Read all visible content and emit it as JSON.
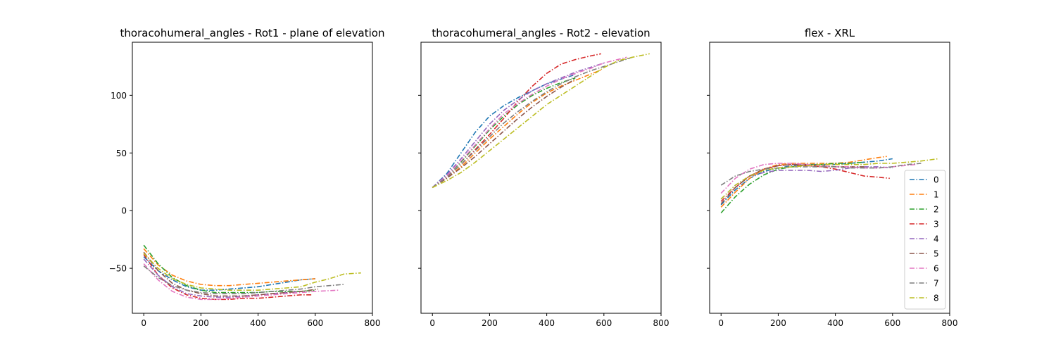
{
  "chart_data": [
    {
      "type": "line",
      "title": "thoracohumeral_angles - Rot1 - plane of elevation",
      "xlabel": "",
      "ylabel": "",
      "xlim": [
        -40,
        800
      ],
      "ylim": [
        -89,
        146
      ],
      "xticks": [
        0,
        200,
        400,
        600,
        800
      ],
      "yticks": [
        -50,
        0,
        50,
        100
      ],
      "yticklabels": [
        "−50",
        "0",
        "50",
        "100"
      ],
      "grid": false,
      "series": [
        {
          "name": "0",
          "x": [
            0,
            50,
            100,
            150,
            200,
            250,
            300,
            350,
            400,
            450,
            500,
            550,
            600
          ],
          "y": [
            -40,
            -52,
            -60,
            -66,
            -69,
            -69,
            -68,
            -67,
            -66,
            -64,
            -62,
            -60,
            -59
          ]
        },
        {
          "name": "1",
          "x": [
            0,
            50,
            100,
            150,
            200,
            250,
            300,
            350,
            400,
            450,
            500,
            550,
            600
          ],
          "y": [
            -33,
            -47,
            -56,
            -61,
            -64,
            -65,
            -65,
            -64,
            -63,
            -62,
            -61,
            -60,
            -59
          ]
        },
        {
          "name": "2",
          "x": [
            0,
            50,
            100,
            150,
            200,
            250,
            300,
            350,
            400,
            450,
            500,
            550,
            600
          ],
          "y": [
            -30,
            -46,
            -58,
            -65,
            -69,
            -71,
            -71,
            -71,
            -71,
            -70,
            -70,
            -70,
            -69
          ]
        },
        {
          "name": "3",
          "x": [
            0,
            50,
            100,
            150,
            200,
            250,
            300,
            350,
            400,
            450,
            500,
            550,
            590
          ],
          "y": [
            -38,
            -56,
            -67,
            -73,
            -76,
            -77,
            -77,
            -76,
            -76,
            -75,
            -74,
            -73,
            -73
          ]
        },
        {
          "name": "4",
          "x": [
            0,
            50,
            100,
            150,
            200,
            250,
            300,
            350,
            400,
            450,
            500,
            550
          ],
          "y": [
            -42,
            -56,
            -66,
            -72,
            -74,
            -75,
            -75,
            -74,
            -73,
            -72,
            -71,
            -70
          ]
        },
        {
          "name": "5",
          "x": [
            0,
            50,
            100,
            150,
            200,
            250,
            300,
            350,
            400,
            450,
            500,
            550,
            610
          ],
          "y": [
            -36,
            -52,
            -63,
            -69,
            -72,
            -74,
            -74,
            -74,
            -73,
            -72,
            -71,
            -70,
            -68
          ]
        },
        {
          "name": "6",
          "x": [
            0,
            50,
            100,
            150,
            200,
            250,
            300,
            350,
            400,
            450,
            500,
            550,
            600,
            680
          ],
          "y": [
            -46,
            -60,
            -70,
            -75,
            -77,
            -77,
            -76,
            -75,
            -74,
            -73,
            -72,
            -71,
            -70,
            -69
          ]
        },
        {
          "name": "7",
          "x": [
            0,
            50,
            100,
            150,
            200,
            250,
            300,
            350,
            400,
            450,
            500,
            550,
            600,
            650,
            700
          ],
          "y": [
            -48,
            -58,
            -65,
            -69,
            -71,
            -72,
            -72,
            -72,
            -71,
            -70,
            -69,
            -68,
            -66,
            -65,
            -64
          ]
        },
        {
          "name": "8",
          "x": [
            0,
            50,
            100,
            150,
            200,
            250,
            300,
            350,
            400,
            450,
            500,
            550,
            600,
            650,
            700,
            760
          ],
          "y": [
            -37,
            -50,
            -59,
            -64,
            -67,
            -68,
            -69,
            -69,
            -69,
            -68,
            -67,
            -66,
            -62,
            -59,
            -55,
            -54
          ]
        }
      ]
    },
    {
      "type": "line",
      "title": "thoracohumeral_angles - Rot2 - elevation",
      "xlabel": "",
      "ylabel": "",
      "xlim": [
        -40,
        800
      ],
      "ylim": [
        -89,
        146
      ],
      "xticks": [
        0,
        200,
        400,
        600,
        800
      ],
      "yticks": [
        -50,
        0,
        50,
        100
      ],
      "grid": false,
      "series": [
        {
          "name": "0",
          "x": [
            0,
            50,
            100,
            150,
            200,
            250,
            300,
            350,
            400,
            450,
            500
          ],
          "y": [
            20,
            32,
            50,
            68,
            82,
            91,
            98,
            104,
            110,
            114,
            118
          ]
        },
        {
          "name": "1",
          "x": [
            0,
            50,
            100,
            150,
            200,
            250,
            300,
            350,
            400,
            450,
            500,
            550,
            590
          ],
          "y": [
            20,
            28,
            38,
            50,
            62,
            73,
            84,
            94,
            102,
            108,
            113,
            118,
            122
          ]
        },
        {
          "name": "2",
          "x": [
            0,
            50,
            100,
            150,
            200,
            250,
            300,
            350,
            400,
            450,
            500
          ],
          "y": [
            20,
            30,
            42,
            56,
            70,
            82,
            92,
            100,
            106,
            111,
            115
          ]
        },
        {
          "name": "3",
          "x": [
            0,
            50,
            100,
            150,
            200,
            250,
            300,
            350,
            400,
            450,
            500,
            550,
            590
          ],
          "y": [
            20,
            29,
            40,
            53,
            66,
            80,
            95,
            108,
            119,
            127,
            131,
            134,
            136
          ]
        },
        {
          "name": "4",
          "x": [
            0,
            50,
            100,
            150,
            200,
            250,
            300,
            350,
            400,
            450,
            500,
            550,
            600
          ],
          "y": [
            20,
            31,
            45,
            60,
            75,
            87,
            96,
            104,
            110,
            115,
            120,
            124,
            128
          ]
        },
        {
          "name": "5",
          "x": [
            0,
            50,
            100,
            150,
            200,
            250,
            300,
            350,
            400,
            450,
            500
          ],
          "y": [
            20,
            28,
            37,
            47,
            58,
            69,
            80,
            90,
            99,
            107,
            114
          ]
        },
        {
          "name": "6",
          "x": [
            0,
            50,
            100,
            150,
            200,
            250,
            300,
            350,
            400,
            450,
            500,
            550,
            600,
            680
          ],
          "y": [
            20,
            30,
            43,
            57,
            71,
            84,
            93,
            101,
            108,
            114,
            119,
            123,
            128,
            133
          ]
        },
        {
          "name": "7",
          "x": [
            0,
            50,
            100,
            150,
            200,
            250,
            300,
            350,
            400,
            450,
            500,
            550,
            600,
            650,
            700
          ],
          "y": [
            20,
            29,
            40,
            52,
            64,
            76,
            86,
            95,
            103,
            110,
            116,
            121,
            125,
            129,
            133
          ]
        },
        {
          "name": "8",
          "x": [
            0,
            50,
            100,
            150,
            200,
            250,
            300,
            350,
            400,
            450,
            500,
            550,
            600,
            650,
            700,
            760
          ],
          "y": [
            20,
            26,
            33,
            42,
            52,
            62,
            72,
            82,
            92,
            100,
            108,
            116,
            124,
            130,
            133,
            136
          ]
        }
      ]
    },
    {
      "type": "line",
      "title": "flex - XRL",
      "xlabel": "",
      "ylabel": "",
      "xlim": [
        -40,
        800
      ],
      "ylim": [
        -89,
        146
      ],
      "xticks": [
        0,
        200,
        400,
        600,
        800
      ],
      "yticks": [
        -50,
        0,
        50,
        100
      ],
      "grid": false,
      "legend": "lower-right",
      "series": [
        {
          "name": "0",
          "x": [
            0,
            50,
            100,
            150,
            200,
            250,
            300,
            350,
            400,
            450,
            500,
            550,
            600
          ],
          "y": [
            5,
            18,
            28,
            34,
            37,
            39,
            40,
            40,
            40,
            41,
            42,
            43,
            45
          ]
        },
        {
          "name": "1",
          "x": [
            0,
            50,
            100,
            150,
            200,
            250,
            300,
            350,
            400,
            450,
            500,
            550,
            580
          ],
          "y": [
            3,
            16,
            28,
            36,
            40,
            41,
            41,
            41,
            41,
            42,
            44,
            46,
            47
          ]
        },
        {
          "name": "2",
          "x": [
            0,
            50,
            100,
            150,
            200,
            250,
            300,
            350,
            400,
            450,
            500
          ],
          "y": [
            -2,
            12,
            23,
            31,
            36,
            38,
            40,
            40,
            41,
            41,
            42
          ]
        },
        {
          "name": "3",
          "x": [
            0,
            50,
            100,
            150,
            200,
            250,
            300,
            350,
            400,
            450,
            500,
            550,
            590
          ],
          "y": [
            8,
            20,
            30,
            36,
            39,
            40,
            39,
            38,
            36,
            33,
            30,
            29,
            28
          ]
        },
        {
          "name": "4",
          "x": [
            0,
            50,
            100,
            150,
            200,
            250,
            300,
            350,
            400,
            450,
            500,
            550,
            600
          ],
          "y": [
            10,
            22,
            30,
            33,
            35,
            35,
            35,
            34,
            35,
            37,
            38,
            38,
            37
          ]
        },
        {
          "name": "5",
          "x": [
            0,
            50,
            100,
            150,
            200,
            250,
            300,
            350,
            400,
            450,
            500
          ],
          "y": [
            6,
            20,
            30,
            36,
            39,
            40,
            40,
            39,
            38,
            38,
            38
          ]
        },
        {
          "name": "6",
          "x": [
            0,
            50,
            100,
            150,
            200,
            250,
            300,
            350,
            400,
            450,
            500,
            550,
            600,
            680
          ],
          "y": [
            15,
            28,
            36,
            40,
            41,
            41,
            40,
            39,
            38,
            38,
            37,
            37,
            38,
            40
          ]
        },
        {
          "name": "7",
          "x": [
            0,
            50,
            100,
            150,
            200,
            250,
            300,
            350,
            400,
            450,
            500,
            550,
            600,
            650,
            700
          ],
          "y": [
            22,
            30,
            34,
            36,
            37,
            38,
            38,
            38,
            38,
            37,
            37,
            37,
            38,
            40,
            41
          ]
        },
        {
          "name": "8",
          "x": [
            0,
            50,
            100,
            150,
            200,
            250,
            300,
            350,
            400,
            450,
            500,
            550,
            600,
            650,
            700,
            760
          ],
          "y": [
            10,
            22,
            30,
            35,
            37,
            38,
            39,
            40,
            40,
            40,
            40,
            41,
            41,
            42,
            43,
            45
          ]
        }
      ]
    }
  ],
  "colors": [
    "#1f77b4",
    "#ff7f0e",
    "#2ca02c",
    "#d62728",
    "#9467bd",
    "#8c564b",
    "#e377c2",
    "#7f7f7f",
    "#bcbd22"
  ]
}
